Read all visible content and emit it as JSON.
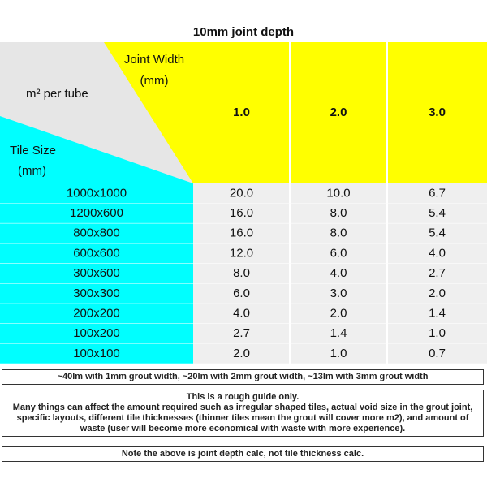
{
  "title": "10mm joint depth",
  "table": {
    "corner": {
      "joint_width": [
        "Joint Width",
        "(mm)"
      ],
      "per_tube": "m² per tube",
      "tile_size": [
        "Tile Size",
        "(mm)"
      ]
    },
    "columns": [
      "1.0",
      "2.0",
      "3.0"
    ],
    "rows": [
      [
        "1000x1000",
        "20.0",
        "10.0",
        "6.7"
      ],
      [
        "1200x600",
        "16.0",
        "8.0",
        "5.4"
      ],
      [
        "800x800",
        "16.0",
        "8.0",
        "5.4"
      ],
      [
        "600x600",
        "12.0",
        "6.0",
        "4.0"
      ],
      [
        "300x600",
        "8.0",
        "4.0",
        "2.7"
      ],
      [
        "300x300",
        "6.0",
        "3.0",
        "2.0"
      ],
      [
        "200x200",
        "4.0",
        "2.0",
        "1.4"
      ],
      [
        "100x200",
        "2.7",
        "1.4",
        "1.0"
      ],
      [
        "100x100",
        "2.0",
        "1.0",
        "0.7"
      ]
    ]
  },
  "notes": [
    {
      "lines": [
        "~40lm with 1mm grout width, ~20lm with 2mm grout width, ~13lm with 3mm grout width"
      ]
    },
    {
      "lines": [
        "This is a rough guide only.",
        "Many things can affect the amount required such as irregular shaped tiles, actual void size in the grout joint, specific layouts, different tile thicknesses (thinner tiles mean the grout will cover more m2), and amount of waste (user will become more economical with waste with more experience)."
      ]
    },
    {
      "lines": [
        "Note the above is joint depth calc, not tile thickness calc."
      ]
    }
  ]
}
